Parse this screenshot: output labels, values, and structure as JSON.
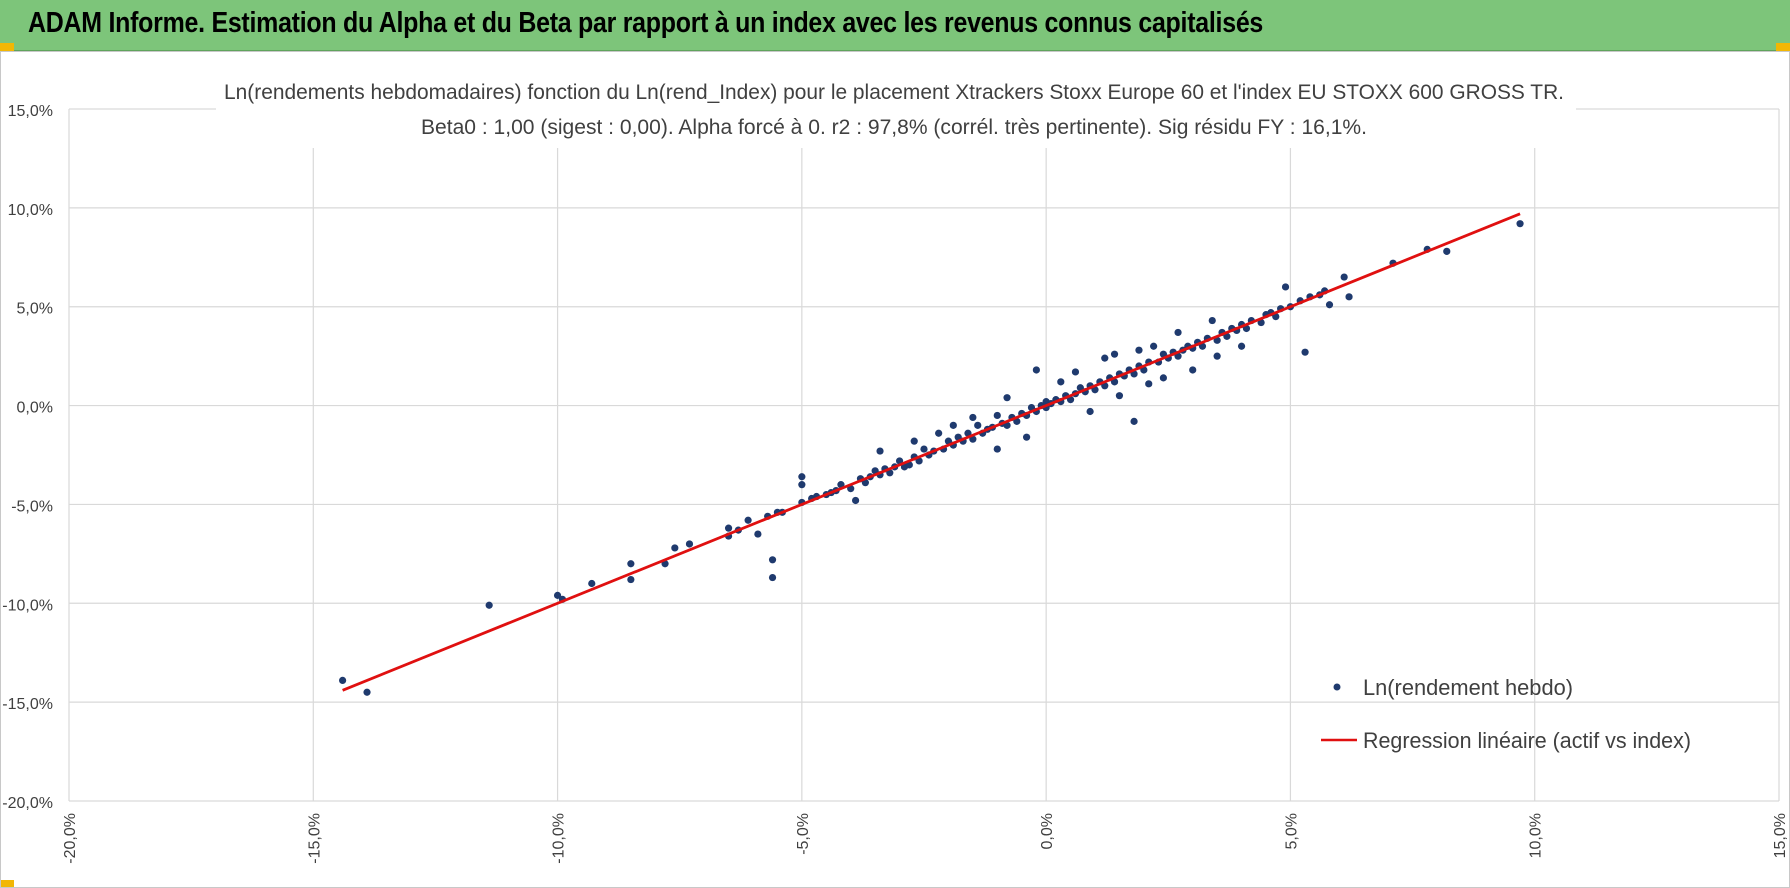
{
  "header": {
    "title": "ADAM Informe. Estimation du Alpha et du Beta par rapport à un index avec les revenus connus capitalisés"
  },
  "colors": {
    "header_bg": "#7dc57a",
    "points": "#1f3a6e",
    "regression": "#e01010",
    "grid": "#d9d9d9",
    "corner_accent": "#f2b705"
  },
  "chart_data": {
    "type": "scatter",
    "title": "Ln(rendements hebdomadaires) fonction du Ln(rend_Index) pour le placement Xtrackers Stoxx Europe 60 et l'index EU STOXX 600 GROSS TR.",
    "subtitle": "Beta0 : 1,00 (sigest : 0,00). Alpha forcé à 0. r2 : 97,8% (corrél. très pertinente). Sig résidu FY : 16,1%.",
    "xlim": [
      -0.2,
      0.15
    ],
    "ylim": [
      -0.2,
      0.15
    ],
    "x_ticks": [
      -0.2,
      -0.15,
      -0.1,
      -0.05,
      0.0,
      0.05,
      0.1,
      0.15
    ],
    "y_ticks": [
      -0.2,
      -0.15,
      -0.1,
      -0.05,
      0.0,
      0.05,
      0.1,
      0.15
    ],
    "x_tick_labels": [
      "-20,0%",
      "-15,0%",
      "-10,0%",
      "-5,0%",
      "0,0%",
      "5,0%",
      "10,0%",
      "15,0%"
    ],
    "y_tick_labels": [
      "-20,0%",
      "-15,0%",
      "-10,0%",
      "-5,0%",
      "0,0%",
      "5,0%",
      "10,0%",
      "15,0%"
    ],
    "grid": true,
    "legend_position": "bottom-right",
    "series": [
      {
        "name": "Ln(rendement hebdo)",
        "type": "scatter",
        "points": [
          [
            -0.144,
            -0.139
          ],
          [
            -0.139,
            -0.145
          ],
          [
            -0.114,
            -0.101
          ],
          [
            -0.1,
            -0.096
          ],
          [
            -0.099,
            -0.098
          ],
          [
            -0.093,
            -0.09
          ],
          [
            -0.085,
            -0.08
          ],
          [
            -0.085,
            -0.088
          ],
          [
            -0.078,
            -0.08
          ],
          [
            -0.076,
            -0.072
          ],
          [
            -0.073,
            -0.07
          ],
          [
            -0.065,
            -0.066
          ],
          [
            -0.065,
            -0.062
          ],
          [
            -0.063,
            -0.063
          ],
          [
            -0.061,
            -0.058
          ],
          [
            -0.059,
            -0.065
          ],
          [
            -0.056,
            -0.087
          ],
          [
            -0.056,
            -0.078
          ],
          [
            -0.057,
            -0.056
          ],
          [
            -0.055,
            -0.054
          ],
          [
            -0.054,
            -0.054
          ],
          [
            -0.05,
            -0.04
          ],
          [
            -0.05,
            -0.036
          ],
          [
            -0.05,
            -0.049
          ],
          [
            -0.048,
            -0.047
          ],
          [
            -0.047,
            -0.046
          ],
          [
            -0.045,
            -0.045
          ],
          [
            -0.044,
            -0.044
          ],
          [
            -0.043,
            -0.043
          ],
          [
            -0.042,
            -0.04
          ],
          [
            -0.04,
            -0.042
          ],
          [
            -0.039,
            -0.048
          ],
          [
            -0.038,
            -0.037
          ],
          [
            -0.037,
            -0.039
          ],
          [
            -0.036,
            -0.036
          ],
          [
            -0.035,
            -0.033
          ],
          [
            -0.034,
            -0.035
          ],
          [
            -0.034,
            -0.023
          ],
          [
            -0.033,
            -0.032
          ],
          [
            -0.032,
            -0.034
          ],
          [
            -0.031,
            -0.031
          ],
          [
            -0.03,
            -0.028
          ],
          [
            -0.029,
            -0.031
          ],
          [
            -0.028,
            -0.03
          ],
          [
            -0.027,
            -0.026
          ],
          [
            -0.026,
            -0.028
          ],
          [
            -0.025,
            -0.022
          ],
          [
            -0.024,
            -0.025
          ],
          [
            -0.023,
            -0.023
          ],
          [
            -0.022,
            -0.014
          ],
          [
            -0.021,
            -0.022
          ],
          [
            -0.02,
            -0.018
          ],
          [
            -0.019,
            -0.02
          ],
          [
            -0.018,
            -0.016
          ],
          [
            -0.017,
            -0.018
          ],
          [
            -0.016,
            -0.014
          ],
          [
            -0.015,
            -0.017
          ],
          [
            -0.014,
            -0.01
          ],
          [
            -0.013,
            -0.014
          ],
          [
            -0.012,
            -0.012
          ],
          [
            -0.011,
            -0.011
          ],
          [
            -0.01,
            -0.005
          ],
          [
            -0.01,
            -0.022
          ],
          [
            -0.009,
            -0.009
          ],
          [
            -0.008,
            -0.01
          ],
          [
            -0.007,
            -0.006
          ],
          [
            -0.006,
            -0.008
          ],
          [
            -0.005,
            -0.004
          ],
          [
            -0.004,
            -0.005
          ],
          [
            -0.003,
            -0.001
          ],
          [
            -0.002,
            -0.003
          ],
          [
            -0.001,
            0.0
          ],
          [
            0.0,
            -0.001
          ],
          [
            0.0,
            0.002
          ],
          [
            0.001,
            0.001
          ],
          [
            0.002,
            0.003
          ],
          [
            0.003,
            0.002
          ],
          [
            0.004,
            0.005
          ],
          [
            0.005,
            0.003
          ],
          [
            -0.002,
            0.018
          ],
          [
            0.006,
            0.006
          ],
          [
            0.007,
            0.009
          ],
          [
            0.008,
            0.007
          ],
          [
            0.009,
            0.01
          ],
          [
            0.01,
            0.008
          ],
          [
            0.011,
            0.012
          ],
          [
            0.012,
            0.01
          ],
          [
            0.013,
            0.014
          ],
          [
            0.014,
            0.012
          ],
          [
            0.015,
            0.016
          ],
          [
            0.016,
            0.015
          ],
          [
            0.017,
            0.018
          ],
          [
            0.018,
            0.016
          ],
          [
            0.019,
            0.02
          ],
          [
            0.02,
            0.018
          ],
          [
            0.021,
            0.022
          ],
          [
            0.022,
            0.03
          ],
          [
            0.023,
            0.022
          ],
          [
            0.024,
            0.026
          ],
          [
            0.025,
            0.024
          ],
          [
            0.026,
            0.027
          ],
          [
            0.027,
            0.025
          ],
          [
            0.028,
            0.028
          ],
          [
            0.029,
            0.03
          ],
          [
            0.03,
            0.029
          ],
          [
            0.031,
            0.032
          ],
          [
            0.032,
            0.03
          ],
          [
            0.033,
            0.034
          ],
          [
            0.034,
            0.043
          ],
          [
            0.035,
            0.033
          ],
          [
            0.036,
            0.037
          ],
          [
            0.037,
            0.035
          ],
          [
            0.038,
            0.039
          ],
          [
            0.039,
            0.038
          ],
          [
            0.04,
            0.041
          ],
          [
            0.041,
            0.039
          ],
          [
            0.042,
            0.043
          ],
          [
            0.044,
            0.042
          ],
          [
            0.045,
            0.046
          ],
          [
            0.046,
            0.047
          ],
          [
            0.047,
            0.045
          ],
          [
            0.048,
            0.049
          ],
          [
            0.049,
            0.06
          ],
          [
            0.05,
            0.05
          ],
          [
            0.052,
            0.053
          ],
          [
            0.053,
            0.027
          ],
          [
            0.054,
            0.055
          ],
          [
            0.056,
            0.056
          ],
          [
            0.057,
            0.058
          ],
          [
            0.058,
            0.051
          ],
          [
            0.061,
            0.065
          ],
          [
            0.062,
            0.055
          ],
          [
            0.071,
            0.072
          ],
          [
            0.078,
            0.079
          ],
          [
            0.082,
            0.078
          ],
          [
            0.097,
            0.092
          ],
          [
            0.018,
            -0.008
          ],
          [
            0.012,
            0.024
          ],
          [
            -0.004,
            -0.016
          ],
          [
            0.009,
            -0.003
          ],
          [
            0.024,
            0.014
          ],
          [
            0.014,
            0.026
          ],
          [
            0.035,
            0.025
          ],
          [
            0.006,
            0.017
          ],
          [
            -0.015,
            -0.006
          ],
          [
            0.027,
            0.037
          ],
          [
            0.03,
            0.018
          ],
          [
            0.04,
            0.03
          ],
          [
            0.003,
            0.012
          ],
          [
            0.015,
            0.005
          ],
          [
            -0.019,
            -0.01
          ],
          [
            -0.027,
            -0.018
          ],
          [
            0.021,
            0.011
          ],
          [
            0.019,
            0.028
          ],
          [
            -0.008,
            0.004
          ]
        ]
      },
      {
        "name": "Regression linéaire (actif vs index)",
        "type": "line",
        "x": [
          -0.144,
          0.097
        ],
        "y": [
          -0.144,
          0.097
        ]
      }
    ]
  }
}
